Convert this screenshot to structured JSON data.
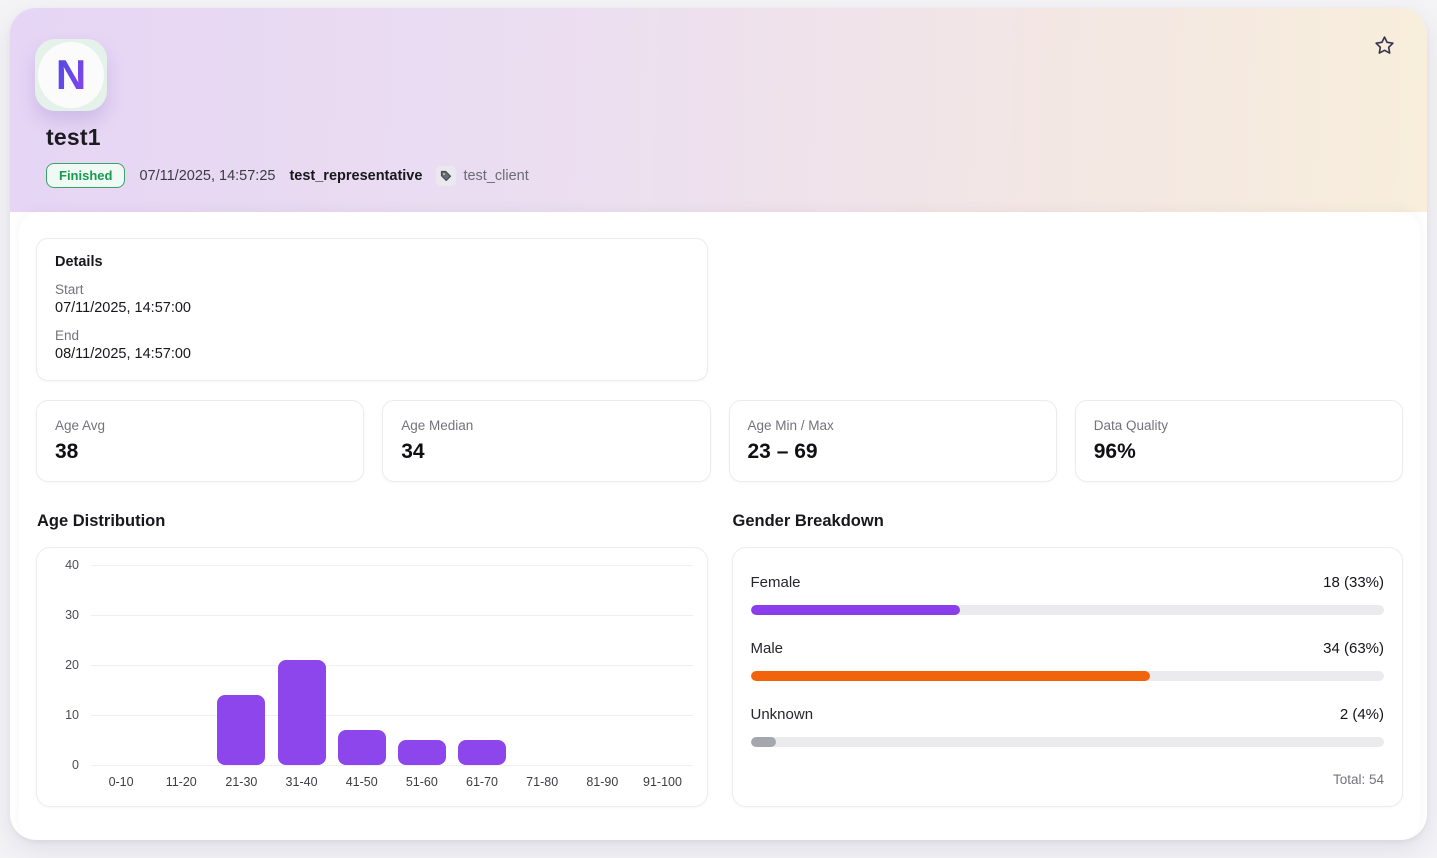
{
  "header": {
    "logo_letter": "N",
    "title": "test1",
    "status_badge": "Finished",
    "timestamp": "07/11/2025, 14:57:25",
    "representative": "test_representative",
    "client": "test_client"
  },
  "details": {
    "title": "Details",
    "start_label": "Start",
    "start_value": "07/11/2025, 14:57:00",
    "end_label": "End",
    "end_value": "08/11/2025, 14:57:00"
  },
  "stats": [
    {
      "label": "Age Avg",
      "value": "38"
    },
    {
      "label": "Age Median",
      "value": "34"
    },
    {
      "label": "Age Min / Max",
      "value": "23 – 69"
    },
    {
      "label": "Data Quality",
      "value": "96%"
    }
  ],
  "sections": {
    "age_title": "Age Distribution",
    "gender_title": "Gender Breakdown"
  },
  "chart_data": [
    {
      "type": "bar",
      "title": "Age Distribution",
      "categories": [
        "0-10",
        "11-20",
        "21-30",
        "31-40",
        "41-50",
        "51-60",
        "61-70",
        "71-80",
        "81-90",
        "91-100"
      ],
      "values": [
        0,
        0,
        14,
        21,
        7,
        5,
        5,
        0,
        0,
        0
      ],
      "xlabel": "",
      "ylabel": "",
      "ylim": [
        0,
        40
      ],
      "yticks": [
        0,
        10,
        20,
        30,
        40
      ],
      "grid": true,
      "legend": false,
      "bar_color": "#8c46ec"
    },
    {
      "type": "bar",
      "title": "Gender Breakdown",
      "layout": "horizontal-progress",
      "categories": [
        "Female",
        "Male",
        "Unknown"
      ],
      "values": [
        18,
        34,
        2
      ],
      "percent": [
        33,
        63,
        4
      ],
      "value_labels": [
        "18 (33%)",
        "34 (63%)",
        "2 (4%)"
      ],
      "bar_colors": [
        "#8a3deb",
        "#f2640c",
        "#a6a6ae"
      ],
      "track_color": "#ebebee",
      "total": 54,
      "total_label": "Total: 54"
    }
  ],
  "colors": {
    "accent_purple": "#8c46ec",
    "accent_orange": "#f2640c",
    "badge_green": "#189a52",
    "header_gradient_left": "#e6d5f5",
    "header_gradient_right": "#f8eedb"
  }
}
